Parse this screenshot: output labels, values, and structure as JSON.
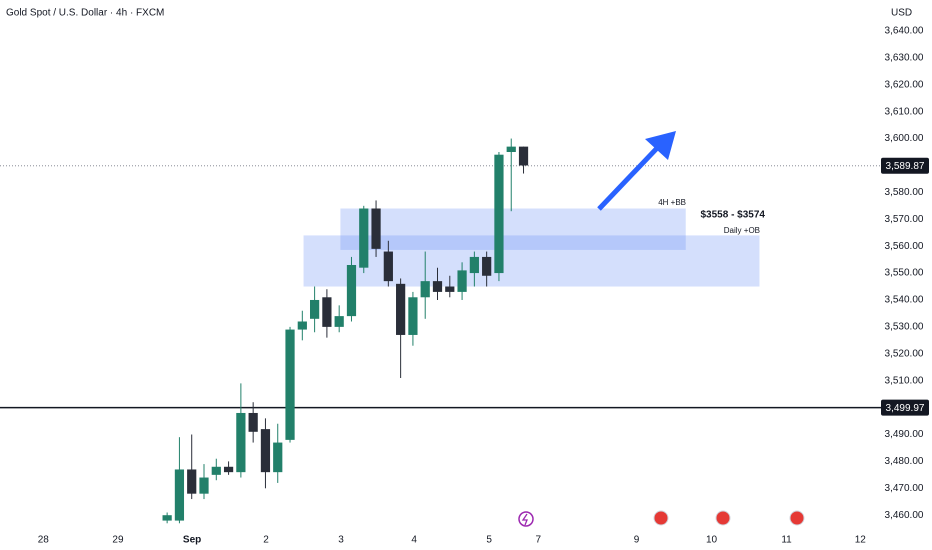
{
  "chart_data": {
    "type": "candlestick",
    "title": "Gold Spot / U.S. Dollar · 4h · FXCM",
    "y_axis_unit": "USD",
    "xlim": [
      -13.6,
      57.6
    ],
    "xticks": [
      {
        "value": -10.08,
        "label": "28"
      },
      {
        "value": -4.0,
        "label": "29"
      },
      {
        "value": 2.03,
        "label": "Sep"
      },
      {
        "value": 8.05,
        "label": "2"
      },
      {
        "value": 14.15,
        "label": "3"
      },
      {
        "value": 20.1,
        "label": "4"
      },
      {
        "value": 26.2,
        "label": "5"
      },
      {
        "value": 30.2,
        "label": "7"
      },
      {
        "value": 38.2,
        "label": "9"
      },
      {
        "value": 44.3,
        "label": "10"
      },
      {
        "value": 50.4,
        "label": "11"
      },
      {
        "value": 56.4,
        "label": "12"
      }
    ],
    "ylim": [
      3454.5,
      3651.5
    ],
    "yticks": [
      {
        "value": 3640,
        "label": "3,640.00"
      },
      {
        "value": 3630,
        "label": "3,630.00"
      },
      {
        "value": 3620,
        "label": "3,620.00"
      },
      {
        "value": 3610,
        "label": "3,610.00"
      },
      {
        "value": 3600,
        "label": "3,600.00"
      },
      {
        "value": 3580,
        "label": "3,580.00"
      },
      {
        "value": 3570,
        "label": "3,570.00"
      },
      {
        "value": 3560,
        "label": "3,560.00"
      },
      {
        "value": 3550,
        "label": "3,550.00"
      },
      {
        "value": 3540,
        "label": "3,540.00"
      },
      {
        "value": 3530,
        "label": "3,530.00"
      },
      {
        "value": 3520,
        "label": "3,520.00"
      },
      {
        "value": 3510,
        "label": "3,510.00"
      },
      {
        "value": 3490,
        "label": "3,490.00"
      },
      {
        "value": 3480,
        "label": "3,480.00"
      },
      {
        "value": 3470,
        "label": "3,470.00"
      },
      {
        "value": 3460,
        "label": "3,460.00"
      }
    ],
    "up_color": "#22806a",
    "down_color": "#2a2e39",
    "open": [
      3458,
      3458,
      3477,
      3468,
      3475,
      3478,
      3476,
      3498,
      3492,
      3476,
      3488,
      3529,
      3533,
      3541,
      3530,
      3534,
      3552,
      3574,
      3558,
      3546,
      3527,
      3541,
      3547,
      3545,
      3543,
      3550,
      3556,
      3550,
      3595,
      3597
    ],
    "high": [
      3461,
      3489,
      3490,
      3479,
      3481,
      3480,
      3509,
      3502,
      3496,
      3494,
      3530,
      3536,
      3545,
      3544,
      3538,
      3556,
      3575,
      3577,
      3562,
      3548,
      3543,
      3558,
      3552,
      3549,
      3554,
      3558,
      3558,
      3595,
      3600,
      3597
    ],
    "low": [
      3457,
      3457,
      3466,
      3466,
      3473,
      3475,
      3474,
      3487,
      3470,
      3472,
      3487,
      3525,
      3528,
      3526,
      3528,
      3532,
      3550,
      3556,
      3545,
      3511,
      3523,
      3533,
      3540,
      3541,
      3540,
      3545,
      3545,
      3547,
      3573,
      3587
    ],
    "close": [
      3460,
      3477,
      3468,
      3474,
      3478,
      3476,
      3498,
      3491,
      3476,
      3487,
      3529,
      3532,
      3540,
      3530,
      3534,
      3553,
      3574,
      3559,
      3547,
      3527,
      3541,
      3547,
      3543,
      3543,
      3551,
      3556,
      3549,
      3594,
      3597,
      3590
    ],
    "price_lines": [
      {
        "value": 3589.87,
        "label": "3,589.87",
        "style": "dotted"
      },
      {
        "value": 3499.97,
        "label": "3,499.97",
        "style": "solid"
      }
    ],
    "zones": [
      {
        "x": [
          14.1,
          42.2
        ],
        "y": [
          3558.6,
          3574
        ],
        "color": "rgba(100,140,245,0.28)"
      },
      {
        "x": [
          11.1,
          48.2
        ],
        "y": [
          3545,
          3564
        ],
        "color": "rgba(100,140,245,0.28)"
      }
    ],
    "annotations": [
      "4H +BB",
      "$3558 - $3574",
      "Daily +OB"
    ]
  }
}
